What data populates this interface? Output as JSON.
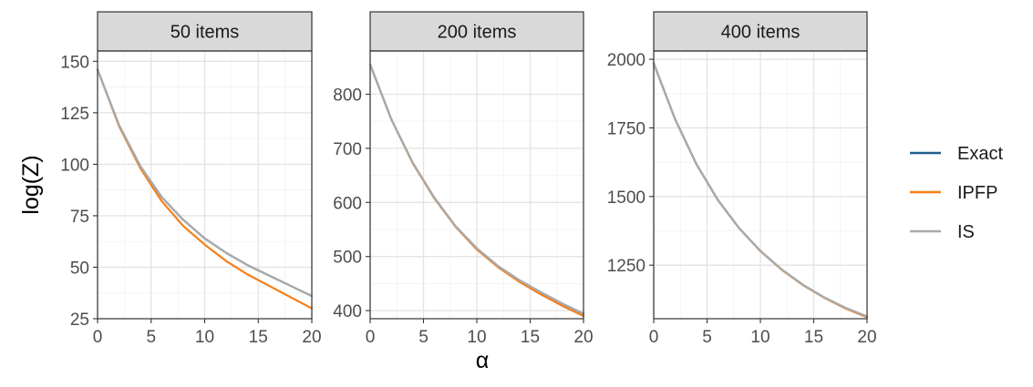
{
  "chart_data": {
    "type": "line",
    "ylabel": "log(Z)",
    "xlabel": "α",
    "legend": {
      "position": "right",
      "entries": [
        {
          "name": "Exact",
          "color": "#1f5f8b"
        },
        {
          "name": "IPFP",
          "color": "#f57f17"
        },
        {
          "name": "IS",
          "color": "#aaaaaa"
        }
      ]
    },
    "grid": true,
    "panels": [
      {
        "title": "50 items",
        "xlim": [
          0,
          20
        ],
        "ylim": [
          25,
          155
        ],
        "xticks": [
          0,
          5,
          10,
          15,
          20
        ],
        "yticks": [
          25,
          50,
          75,
          100,
          125,
          150
        ],
        "series": [
          {
            "name": "Exact",
            "x": [
              0,
              2,
              4,
              6,
              8,
              10,
              12,
              14,
              16,
              18,
              20
            ],
            "y": [
              146,
              119,
              99,
              84,
              73,
              64,
              57,
              51,
              46,
              41,
              36
            ]
          },
          {
            "name": "IPFP",
            "x": [
              0,
              2,
              4,
              6,
              8,
              10,
              12,
              14,
              16,
              18,
              20
            ],
            "y": [
              146,
              118.5,
              98,
              82,
              70,
              61,
              53,
              46.5,
              41,
              35.5,
              30
            ]
          },
          {
            "name": "IS",
            "x": [
              0,
              2,
              4,
              6,
              8,
              10,
              12,
              14,
              16,
              18,
              20
            ],
            "y": [
              146,
              119,
              99,
              84,
              73,
              64,
              57,
              51,
              46,
              41,
              36
            ]
          }
        ]
      },
      {
        "title": "200 items",
        "xlim": [
          0,
          20
        ],
        "ylim": [
          385,
          880
        ],
        "xticks": [
          0,
          5,
          10,
          15,
          20
        ],
        "yticks": [
          400,
          500,
          600,
          700,
          800
        ],
        "series": [
          {
            "name": "Exact",
            "x": [
              0,
              2,
              4,
              6,
              8,
              10,
              12,
              14,
              16,
              18,
              20
            ],
            "y": [
              855,
              753,
              673,
              609,
              556,
              515,
              482,
              456,
              434,
              413,
              394
            ]
          },
          {
            "name": "IPFP",
            "x": [
              0,
              2,
              4,
              6,
              8,
              10,
              12,
              14,
              16,
              18,
              20
            ],
            "y": [
              855,
              753,
              672,
              608,
              555,
              513,
              480,
              453,
              430,
              409,
              390
            ]
          },
          {
            "name": "IS",
            "x": [
              0,
              2,
              4,
              6,
              8,
              10,
              12,
              14,
              16,
              18,
              20
            ],
            "y": [
              855,
              753,
              673,
              609,
              556,
              515,
              482,
              456,
              434,
              413,
              394
            ]
          }
        ]
      },
      {
        "title": "400 items",
        "xlim": [
          0,
          20
        ],
        "ylim": [
          1055,
          2030
        ],
        "xticks": [
          0,
          5,
          10,
          15,
          20
        ],
        "yticks": [
          1250,
          1500,
          1750,
          2000
        ],
        "series": [
          {
            "name": "Exact",
            "x": [
              0,
              2,
              4,
              6,
              8,
              10,
              12,
              14,
              16,
              18,
              20
            ],
            "y": [
              1985,
              1782,
              1618,
              1488,
              1385,
              1302,
              1234,
              1178,
              1132,
              1094,
              1063
            ]
          },
          {
            "name": "IPFP",
            "x": [
              0,
              2,
              4,
              6,
              8,
              10,
              12,
              14,
              16,
              18,
              20
            ],
            "y": [
              1985,
              1782,
              1618,
              1488,
              1385,
              1301,
              1233,
              1177,
              1131,
              1092,
              1060
            ]
          },
          {
            "name": "IS",
            "x": [
              0,
              2,
              4,
              6,
              8,
              10,
              12,
              14,
              16,
              18,
              20
            ],
            "y": [
              1985,
              1782,
              1618,
              1488,
              1385,
              1302,
              1234,
              1178,
              1132,
              1094,
              1063
            ]
          }
        ]
      }
    ]
  }
}
